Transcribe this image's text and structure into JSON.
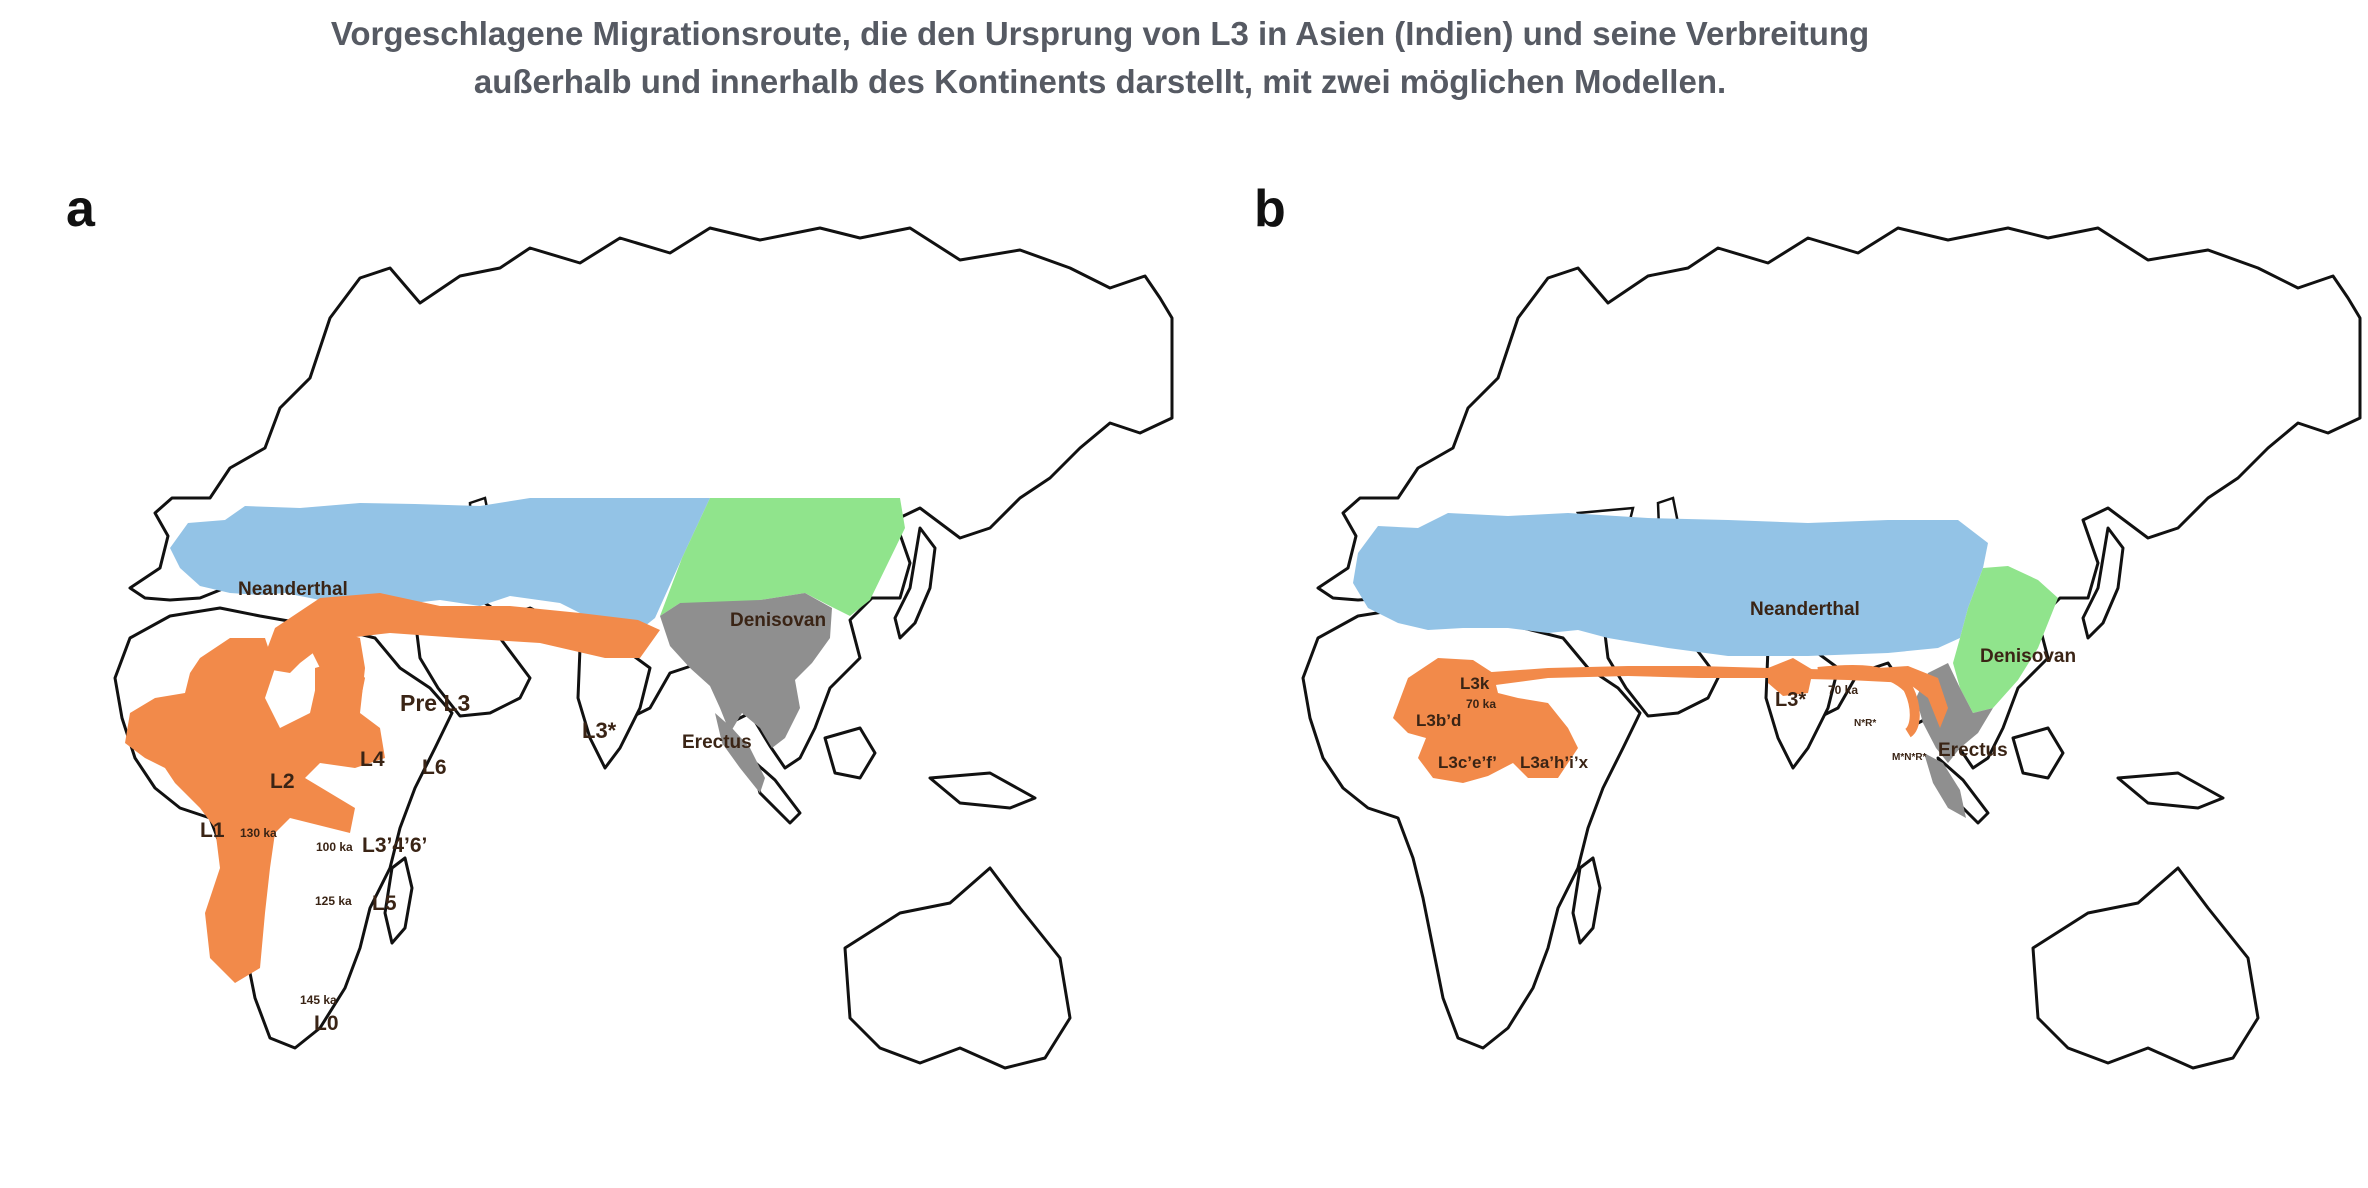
{
  "title": {
    "line1": "Vorgeschlagene Migrationsroute, die den Ursprung von L3 in Asien (Indien) und seine Verbreitung",
    "line2": "außerhalb und innerhalb des Kontinents darstellt, mit zwei möglichen Modellen."
  },
  "colors": {
    "neanderthal": "#93c3e6",
    "denisovan": "#90e48c",
    "erectus": "#8f8f8f",
    "migration": "#f28a4a",
    "coastline": "#111111"
  },
  "panel_a": {
    "letter": "a",
    "labels": {
      "neanderthal": "Neanderthal",
      "denisovan": "Denisovan",
      "erectus": "Erectus",
      "pre_l3": "Pre L3",
      "l3_star": "L3*",
      "l2": "L2",
      "l4": "L4",
      "l6": "L6",
      "l1": "L1",
      "l1_age": "130 ka",
      "l3_4_6": "L3’4’6’",
      "age_100": "100 ka",
      "age_125": "125 ka",
      "l5": "L5",
      "age_145": "145 ka",
      "l0": "L0"
    }
  },
  "panel_b": {
    "letter": "b",
    "labels": {
      "neanderthal": "Neanderthal",
      "denisovan": "Denisovan",
      "erectus": "Erectus",
      "l3k": "L3k",
      "age_70_africa": "70 ka",
      "l3bd": "L3b’d",
      "l3cef": "L3c’e’f’",
      "l3ahix": "L3a’h’i’x",
      "l3_star": "L3*",
      "age_70_asia": "70 ka",
      "nr": "N*R*",
      "mnr": "M*N*R*"
    }
  }
}
